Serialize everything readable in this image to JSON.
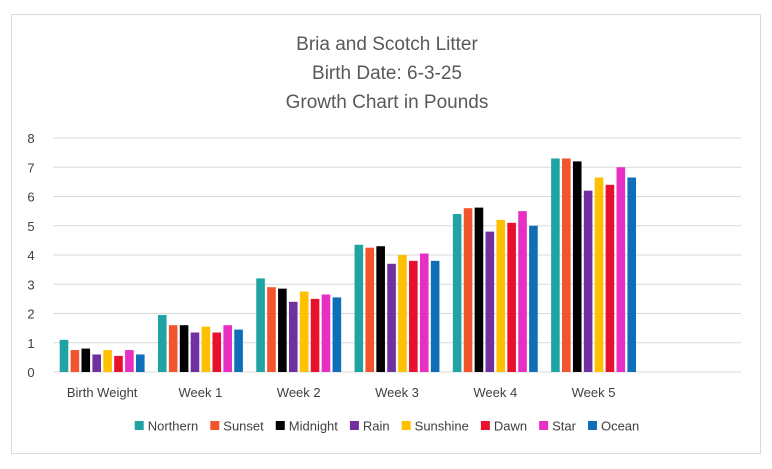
{
  "chart_data": {
    "type": "bar",
    "title": [
      "Bria and Scotch Litter",
      "Birth Date: 6-3-25",
      "Growth Chart in Pounds"
    ],
    "xlabel": "",
    "ylabel": "",
    "ylim": [
      0,
      8
    ],
    "yticks": [
      0,
      1,
      2,
      3,
      4,
      5,
      6,
      7,
      8
    ],
    "grid": true,
    "legend_position": "bottom",
    "categories": [
      "Birth Weight",
      "Week 1",
      "Week 2",
      "Week 3",
      "Week 4",
      "Week 5",
      ""
    ],
    "series": [
      {
        "name": "Northern",
        "color": "#1FA3A3",
        "values": [
          1.1,
          1.95,
          3.2,
          4.35,
          5.4,
          7.3,
          null
        ]
      },
      {
        "name": "Sunset",
        "color": "#F2542D",
        "values": [
          0.75,
          1.6,
          2.9,
          4.25,
          5.6,
          7.3,
          null
        ]
      },
      {
        "name": "Midnight",
        "color": "#000000",
        "values": [
          0.8,
          1.6,
          2.85,
          4.3,
          5.62,
          7.2,
          null
        ]
      },
      {
        "name": "Rain",
        "color": "#7030A0",
        "values": [
          0.6,
          1.35,
          2.4,
          3.7,
          4.8,
          6.2,
          null
        ]
      },
      {
        "name": "Sunshine",
        "color": "#FFC000",
        "values": [
          0.75,
          1.55,
          2.75,
          4.0,
          5.2,
          6.65,
          null
        ]
      },
      {
        "name": "Dawn",
        "color": "#E8112D",
        "values": [
          0.55,
          1.35,
          2.5,
          3.8,
          5.1,
          6.4,
          null
        ]
      },
      {
        "name": "Star",
        "color": "#E82FC4",
        "values": [
          0.75,
          1.6,
          2.65,
          4.05,
          5.5,
          7.0,
          null
        ]
      },
      {
        "name": "Ocean",
        "color": "#0E6EB8",
        "values": [
          0.6,
          1.45,
          2.55,
          3.8,
          5.0,
          6.65,
          null
        ]
      }
    ]
  }
}
